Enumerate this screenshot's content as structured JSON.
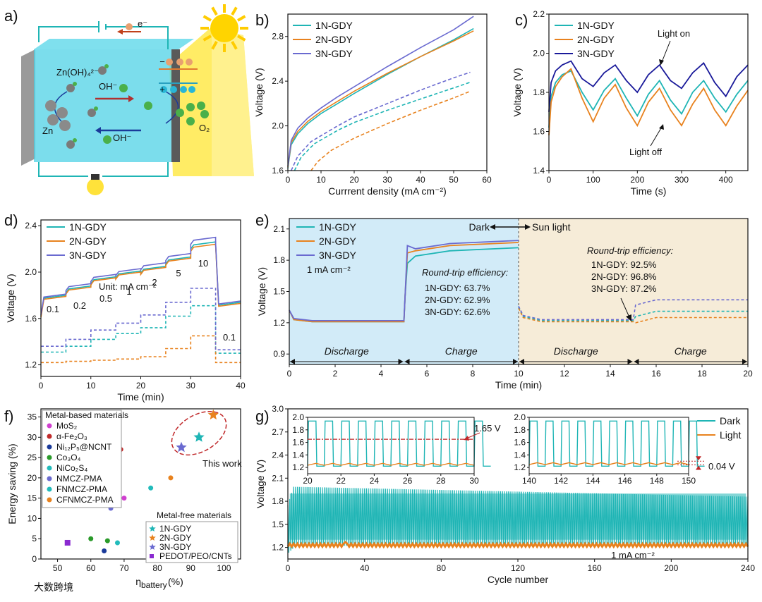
{
  "panels": {
    "a": {
      "label": "a)",
      "electron": "e⁻",
      "zn": "Zn",
      "zincate": "Zn(OH)₄²⁻",
      "oh_top": "OH⁻",
      "oh_bottom": "OH⁻",
      "o2": "O₂",
      "minus": "−",
      "plus": "+"
    },
    "b": {
      "label": "b)"
    },
    "c": {
      "label": "c)"
    },
    "d": {
      "label": "d)"
    },
    "e": {
      "label": "e)"
    },
    "f": {
      "label": "f)"
    },
    "g": {
      "label": "g)"
    }
  },
  "colors": {
    "teal": "#1fb5b5",
    "orange": "#e8821e",
    "purple": "#6a6ad0",
    "navy": "#1a1a9a",
    "dark_bg": "#d2ebf8",
    "light_bg": "#f6ecd8",
    "red": "#c0282a"
  },
  "watermark": "大数跨境",
  "chart_data": [
    {
      "id": "b",
      "type": "line",
      "xlabel": "Currrent density (mA cm⁻²)",
      "ylabel": "Voltage (V)",
      "xlim": [
        0,
        60
      ],
      "ylim": [
        1.6,
        3.0
      ],
      "xticks": [
        "0",
        "10",
        "20",
        "30",
        "40",
        "50",
        "60"
      ],
      "yticks": [
        "1.6",
        "2.0",
        "2.4",
        "2.8"
      ],
      "legend": [
        "1N-GDY",
        "2N-GDY",
        "3N-GDY"
      ],
      "series": [
        {
          "name": "1N-GDY",
          "style": "solid",
          "x": [
            0,
            1,
            3,
            6,
            10,
            15,
            20,
            30,
            40,
            50,
            56
          ],
          "y": [
            1.62,
            1.83,
            1.93,
            2.02,
            2.11,
            2.2,
            2.29,
            2.46,
            2.62,
            2.77,
            2.87
          ]
        },
        {
          "name": "2N-GDY",
          "style": "solid",
          "x": [
            0,
            1,
            3,
            6,
            10,
            15,
            20,
            30,
            40,
            50,
            56
          ],
          "y": [
            1.63,
            1.85,
            1.95,
            2.04,
            2.13,
            2.22,
            2.31,
            2.47,
            2.62,
            2.76,
            2.85
          ]
        },
        {
          "name": "3N-GDY",
          "style": "solid",
          "x": [
            0,
            1,
            3,
            6,
            10,
            15,
            20,
            30,
            40,
            50,
            56
          ],
          "y": [
            1.64,
            1.87,
            1.98,
            2.07,
            2.16,
            2.26,
            2.35,
            2.53,
            2.7,
            2.86,
            2.98
          ]
        },
        {
          "name": "1N-GDY",
          "style": "dashed",
          "x": [
            2,
            4,
            8,
            15,
            20,
            30,
            40,
            50,
            55
          ],
          "y": [
            1.6,
            1.72,
            1.84,
            1.96,
            2.03,
            2.14,
            2.24,
            2.34,
            2.39
          ]
        },
        {
          "name": "2N-GDY",
          "style": "dashed",
          "x": [
            7,
            9,
            13,
            20,
            30,
            40,
            50,
            55
          ],
          "y": [
            1.6,
            1.68,
            1.78,
            1.89,
            2.02,
            2.14,
            2.25,
            2.31
          ]
        },
        {
          "name": "3N-GDY",
          "style": "dashed",
          "x": [
            1,
            3,
            7,
            15,
            20,
            30,
            40,
            50,
            55
          ],
          "y": [
            1.6,
            1.73,
            1.86,
            2.0,
            2.08,
            2.2,
            2.32,
            2.43,
            2.48
          ]
        }
      ]
    },
    {
      "id": "c",
      "type": "line",
      "xlabel": "Time (s)",
      "ylabel": "Voltage (V)",
      "xlim": [
        0,
        450
      ],
      "ylim": [
        1.4,
        2.2
      ],
      "xticks": [
        "0",
        "100",
        "200",
        "300",
        "400"
      ],
      "yticks": [
        "1.4",
        "1.6",
        "1.8",
        "2.0",
        "2.2"
      ],
      "legend": [
        "1N-GDY",
        "2N-GDY",
        "3N-GDY"
      ],
      "annotations": [
        "Light on",
        "Light off"
      ],
      "series": [
        {
          "name": "1N-GDY",
          "x": [
            0,
            5,
            15,
            30,
            50,
            75,
            100,
            125,
            150,
            175,
            200,
            225,
            250,
            275,
            300,
            325,
            350,
            375,
            400,
            425,
            450
          ],
          "y": [
            1.62,
            1.78,
            1.85,
            1.89,
            1.91,
            1.8,
            1.71,
            1.81,
            1.87,
            1.77,
            1.68,
            1.79,
            1.86,
            1.76,
            1.69,
            1.8,
            1.86,
            1.77,
            1.7,
            1.79,
            1.86
          ]
        },
        {
          "name": "2N-GDY",
          "x": [
            0,
            5,
            15,
            30,
            50,
            75,
            100,
            125,
            150,
            175,
            200,
            225,
            250,
            275,
            300,
            325,
            350,
            375,
            400,
            425,
            450
          ],
          "y": [
            1.58,
            1.75,
            1.83,
            1.88,
            1.92,
            1.77,
            1.65,
            1.77,
            1.84,
            1.72,
            1.63,
            1.75,
            1.82,
            1.71,
            1.63,
            1.74,
            1.82,
            1.71,
            1.63,
            1.73,
            1.81
          ]
        },
        {
          "name": "3N-GDY",
          "x": [
            0,
            5,
            15,
            30,
            50,
            75,
            100,
            125,
            150,
            175,
            200,
            225,
            250,
            275,
            300,
            325,
            350,
            375,
            400,
            425,
            450
          ],
          "y": [
            1.7,
            1.85,
            1.91,
            1.94,
            1.96,
            1.87,
            1.83,
            1.9,
            1.94,
            1.86,
            1.8,
            1.89,
            1.94,
            1.86,
            1.82,
            1.9,
            1.95,
            1.85,
            1.78,
            1.88,
            1.94
          ]
        }
      ]
    },
    {
      "id": "d",
      "type": "line",
      "xlabel": "Time (min)",
      "ylabel": "Voltage (V)",
      "xlim": [
        0,
        40
      ],
      "ylim": [
        1.1,
        2.45
      ],
      "xticks": [
        "0",
        "10",
        "20",
        "30",
        "40"
      ],
      "yticks": [
        "1.2",
        "1.6",
        "2.0",
        "2.4"
      ],
      "legend": [
        "1N-GDY",
        "2N-GDY",
        "3N-GDY"
      ],
      "unit_label": "Unit: mA cm⁻²",
      "current_steps": [
        "0.1",
        "0.2",
        "0.5",
        "1",
        "2",
        "5",
        "10",
        "0.1"
      ],
      "series": [
        {
          "name": "1N-GDY",
          "style": "solid",
          "steps": [
            1.8,
            1.88,
            1.96,
            2.01,
            2.05,
            2.13,
            2.26,
            1.74
          ]
        },
        {
          "name": "2N-GDY",
          "style": "solid",
          "steps": [
            1.79,
            1.87,
            1.95,
            2.0,
            2.04,
            2.12,
            2.24,
            1.73
          ]
        },
        {
          "name": "3N-GDY",
          "style": "solid",
          "steps": [
            1.81,
            1.9,
            1.98,
            2.03,
            2.08,
            2.16,
            2.3,
            1.75
          ]
        },
        {
          "name": "1N-GDY",
          "style": "dashed",
          "steps": [
            1.31,
            1.36,
            1.42,
            1.47,
            1.52,
            1.62,
            1.71,
            1.3
          ]
        },
        {
          "name": "2N-GDY",
          "style": "dashed",
          "steps": [
            1.22,
            1.23,
            1.24,
            1.25,
            1.27,
            1.34,
            1.45,
            1.22
          ]
        },
        {
          "name": "3N-GDY",
          "style": "dashed",
          "steps": [
            1.36,
            1.42,
            1.5,
            1.56,
            1.63,
            1.74,
            1.86,
            1.33
          ]
        }
      ]
    },
    {
      "id": "e",
      "type": "line",
      "xlabel": "Time (min)",
      "ylabel": "Voltage (V)",
      "xlim": [
        0,
        20
      ],
      "ylim": [
        0.8,
        2.2
      ],
      "xticks": [
        "0",
        "2",
        "4",
        "6",
        "8",
        "10",
        "12",
        "14",
        "16",
        "18",
        "20"
      ],
      "yticks": [
        "0.9",
        "1.2",
        "1.5",
        "1.8",
        "2.1"
      ],
      "legend": [
        "1N-GDY",
        "2N-GDY",
        "3N-GDY"
      ],
      "current": "1 mA cm⁻²",
      "dark_sun": "Dark",
      "sun_label": "Sun light",
      "phases": [
        "Discharge",
        "Charge",
        "Discharge",
        "Charge"
      ],
      "rte_dark": {
        "title": "Round-trip efficiency:",
        "values": [
          "1N-GDY: 63.7%",
          "2N-GDY: 62.9%",
          "3N-GDY: 62.6%"
        ]
      },
      "rte_light": {
        "title": "Round-trip efficiency:",
        "values": [
          "1N-GDY: 92.5%",
          "2N-GDY: 96.8%",
          "3N-GDY: 87.2%"
        ]
      },
      "series": [
        {
          "name": "1N-GDY",
          "dark_discharge": 1.21,
          "dark_charge": 1.92,
          "light_discharge": 1.22,
          "light_charge": 1.31
        },
        {
          "name": "2N-GDY",
          "dark_discharge": 1.21,
          "dark_charge": 1.97,
          "light_discharge": 1.21,
          "light_charge": 1.25
        },
        {
          "name": "3N-GDY",
          "dark_discharge": 1.22,
          "dark_charge": 1.99,
          "light_discharge": 1.23,
          "light_charge": 1.42
        }
      ]
    },
    {
      "id": "f",
      "type": "scatter",
      "xlabel": "ηbattery (%)",
      "ylabel": "Energy saving (%)",
      "xlim": [
        45,
        105
      ],
      "ylim": [
        0,
        37
      ],
      "xticks": [
        "50",
        "60",
        "70",
        "80",
        "90",
        "100"
      ],
      "yticks": [
        "0",
        "5",
        "10",
        "15",
        "20",
        "25",
        "30",
        "35"
      ],
      "legend_metal_title": "Metal-based materials",
      "legend_free_title": "Metal-free materials",
      "this_work": "This work",
      "points": [
        {
          "name": "MoS₂",
          "x": 60,
          "y": 5,
          "color": "#2a9a2a",
          "marker": "circle"
        },
        {
          "name": "α-Fe₂O₃",
          "x": 69,
          "y": 27,
          "color": "#c02a2a",
          "marker": "circle"
        },
        {
          "name": "Ni₁₂P₅@NCNT",
          "x": 64,
          "y": 2,
          "color": "#1a3a9a",
          "marker": "circle"
        },
        {
          "name": "Co₃O₄",
          "x": 65,
          "y": 4.5,
          "color": "#2a9a2a",
          "marker": "circle"
        },
        {
          "name": "NiCo₂S₄",
          "x": 68,
          "y": 4,
          "color": "#22bbbb",
          "marker": "circle"
        },
        {
          "name": "NMCZ-PMA",
          "x": 66,
          "y": 12.5,
          "color": "#6a6ad0",
          "marker": "circle"
        },
        {
          "name": "FNMCZ-PMA",
          "x": 78,
          "y": 17.5,
          "color": "#22bbbb",
          "marker": "circle"
        },
        {
          "name": "CFNMCZ-PMA",
          "x": 84,
          "y": 20,
          "color": "#e8821e",
          "marker": "circle"
        },
        {
          "name": "MoS₂ (2)",
          "x": 70,
          "y": 15,
          "color": "#d040d0",
          "marker": "circle"
        },
        {
          "name": "1N-GDY",
          "x": 92.5,
          "y": 30,
          "color": "#1fb5b5",
          "marker": "star"
        },
        {
          "name": "2N-GDY",
          "x": 96.8,
          "y": 35.5,
          "color": "#e8821e",
          "marker": "star"
        },
        {
          "name": "3N-GDY",
          "x": 87.2,
          "y": 27.5,
          "color": "#6a6ad0",
          "marker": "star"
        },
        {
          "name": "PEDOT/PEO/CNTs",
          "x": 53,
          "y": 4,
          "color": "#8a2ad0",
          "marker": "square"
        }
      ],
      "legend_metal": [
        {
          "name": "MoS₂",
          "color": "#d040d0"
        },
        {
          "name": "α-Fe₂O₃",
          "color": "#c02a2a"
        },
        {
          "name": "Ni₁₂P₅@NCNT",
          "color": "#1a3a9a"
        },
        {
          "name": "Co₃O₄",
          "color": "#2a9a2a"
        },
        {
          "name": "NiCo₂S₄",
          "color": "#22bbbb"
        },
        {
          "name": "NMCZ-PMA",
          "color": "#6a6ad0"
        },
        {
          "name": "FNMCZ-PMA",
          "color": "#22bbbb"
        },
        {
          "name": "CFNMCZ-PMA",
          "color": "#e8821e"
        }
      ],
      "legend_free": [
        {
          "name": "1N-GDY",
          "color": "#1fb5b5",
          "marker": "star"
        },
        {
          "name": "2N-GDY",
          "color": "#e8821e",
          "marker": "star"
        },
        {
          "name": "3N-GDY",
          "color": "#6a6ad0",
          "marker": "star"
        },
        {
          "name": "PEDOT/PEO/CNTs",
          "color": "#8a2ad0",
          "marker": "square"
        }
      ]
    },
    {
      "id": "g",
      "type": "line",
      "xlabel": "Cycle number",
      "ylabel": "Voltage (V)",
      "xlim": [
        0,
        240
      ],
      "ylim": [
        1.05,
        3.0
      ],
      "xticks": [
        "0",
        "40",
        "80",
        "120",
        "160",
        "200",
        "240"
      ],
      "yticks": [
        "1.2",
        "1.5",
        "1.8",
        "2.1",
        "2.4",
        "2.7",
        "3.0"
      ],
      "legend": [
        "Dark",
        "Light"
      ],
      "current": "1 mA cm⁻²",
      "dark": {
        "upper_start": 1.99,
        "upper_end": 1.86,
        "lower": 1.22
      },
      "light": {
        "value": 1.23
      },
      "inset1": {
        "xlim": [
          20,
          30
        ],
        "ylim": [
          1.1,
          2.0
        ],
        "xticks": [
          "20",
          "22",
          "24",
          "26",
          "28",
          "30"
        ],
        "yticks": [
          "1.2",
          "1.4",
          "1.6",
          "1.8",
          "2.0"
        ],
        "gap_label": "1.65 V",
        "dark_high": 1.94,
        "dark_low": 1.22,
        "light": 1.25,
        "ref_line": 1.65
      },
      "inset2": {
        "xlim": [
          140,
          150
        ],
        "ylim": [
          1.1,
          2.0
        ],
        "xticks": [
          "140",
          "142",
          "144",
          "146",
          "148",
          "150"
        ],
        "yticks": [
          "1.2",
          "1.4",
          "1.6",
          "1.8",
          "2.0"
        ],
        "gap_label": "0.04 V",
        "dark_high": 1.94,
        "dark_low": 1.22,
        "light": 1.26
      }
    }
  ]
}
